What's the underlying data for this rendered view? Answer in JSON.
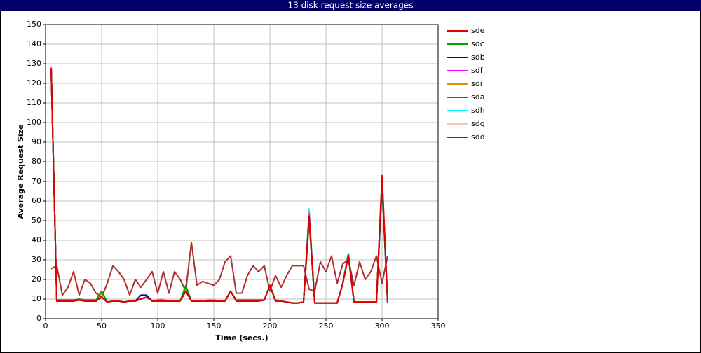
{
  "chart_data": {
    "type": "line",
    "title": "13 disk request size averages",
    "x_label": "Time (secs.)",
    "y_label": "Average Request Size",
    "xlim": [
      0,
      350
    ],
    "xticks": [
      0,
      50,
      100,
      150,
      200,
      250,
      300,
      350
    ],
    "ylim": [
      0,
      150
    ],
    "yticks": [
      0,
      10,
      20,
      30,
      40,
      50,
      60,
      70,
      80,
      90,
      100,
      110,
      120,
      130,
      140,
      150
    ],
    "grid": true,
    "legend": "right",
    "x": [
      5,
      10,
      15,
      20,
      25,
      30,
      35,
      40,
      45,
      50,
      55,
      60,
      65,
      70,
      75,
      80,
      85,
      90,
      95,
      100,
      105,
      110,
      115,
      120,
      125,
      130,
      135,
      140,
      145,
      150,
      155,
      160,
      165,
      170,
      175,
      180,
      185,
      190,
      195,
      200,
      205,
      210,
      215,
      220,
      225,
      230,
      235,
      240,
      245,
      250,
      255,
      260,
      265,
      270,
      275,
      280,
      285,
      290,
      295,
      300,
      305
    ],
    "series": [
      {
        "name": "sde",
        "color": "#e00000",
        "values": [
          128,
          9,
          9,
          9,
          9,
          9.5,
          9,
          9,
          9,
          11,
          8.5,
          9,
          9,
          8.5,
          9,
          9,
          10,
          11,
          9,
          9,
          9,
          9,
          9,
          9,
          14,
          9,
          9,
          9,
          9,
          9,
          9,
          9,
          14,
          9,
          9,
          9,
          9,
          9,
          9.5,
          17,
          9,
          9,
          8.5,
          8,
          8,
          8.5,
          52,
          8,
          8,
          8,
          8,
          8,
          18,
          32,
          8.5,
          8.5,
          8.5,
          8.5,
          8.5,
          73,
          8
        ]
      },
      {
        "name": "sdc",
        "color": "#00a000",
        "values": [
          128,
          9.5,
          9.5,
          9.5,
          9.5,
          10,
          9.5,
          9.5,
          9.5,
          14,
          8.5,
          9,
          9,
          8.5,
          9,
          9,
          10,
          11,
          9,
          9.5,
          9.5,
          9,
          9,
          9,
          17,
          9,
          9,
          9,
          9,
          9,
          9,
          9,
          14,
          9.5,
          9.5,
          9.5,
          9.5,
          9.5,
          9.5,
          17,
          9.5,
          9,
          8.5,
          8,
          8,
          8.5,
          50,
          8,
          8,
          8,
          8,
          8,
          18,
          33,
          8.5,
          8.5,
          8.5,
          8.5,
          8.5,
          70,
          8
        ]
      },
      {
        "name": "sdb",
        "color": "#0000c0",
        "values": [
          128,
          9,
          9,
          9,
          9,
          9.5,
          9,
          9,
          9,
          11,
          8.5,
          9,
          9,
          8.5,
          9,
          9,
          12,
          12,
          9,
          9,
          9,
          9,
          9,
          9,
          14,
          9,
          9,
          9,
          9,
          9,
          9,
          9,
          14,
          9,
          9,
          9,
          9,
          9,
          9.5,
          17,
          9,
          9,
          8.5,
          8,
          8,
          8.5,
          52,
          8,
          8,
          8,
          8,
          8,
          18,
          33,
          8.5,
          8.5,
          8.5,
          8.5,
          8.5,
          68,
          8
        ]
      },
      {
        "name": "sdf",
        "color": "#ff00ff",
        "values": [
          128,
          9,
          9,
          9,
          9,
          9.5,
          9,
          9,
          9,
          11,
          8.5,
          9,
          9,
          8.5,
          9,
          9,
          10,
          11,
          9,
          9,
          9,
          9,
          9,
          9,
          14,
          9,
          9,
          9,
          9,
          9,
          9,
          9,
          14,
          9,
          9,
          9,
          9,
          9,
          9.5,
          17,
          9,
          9,
          8.5,
          8,
          8,
          8.5,
          53,
          8,
          8,
          8,
          8,
          8,
          18,
          32,
          8.5,
          8.5,
          8.5,
          8.5,
          8.5,
          72,
          8
        ]
      },
      {
        "name": "sdi",
        "color": "#e89000",
        "values": [
          128,
          9,
          9,
          9,
          9,
          9.5,
          9,
          9,
          9,
          13,
          8.5,
          9,
          9,
          8.5,
          9,
          9,
          10,
          11,
          9,
          9,
          9,
          9,
          9,
          9,
          15,
          9,
          9,
          9,
          9.5,
          9.5,
          9,
          9,
          14,
          9,
          9,
          9,
          9,
          9,
          9.5,
          17,
          9,
          9,
          8.5,
          8,
          8,
          8.5,
          54,
          8,
          8,
          8,
          8,
          8,
          18,
          32,
          8.5,
          8.5,
          8.5,
          8.5,
          8.5,
          72,
          8
        ]
      },
      {
        "name": "sda",
        "color": "#b03030",
        "values": [
          25.5,
          27,
          12,
          16,
          24,
          12,
          20,
          18,
          13,
          11,
          18,
          27,
          24,
          20,
          12,
          20,
          16,
          20,
          24,
          13,
          24,
          13,
          24,
          20,
          14,
          39,
          17,
          19,
          18,
          17,
          20,
          29,
          32,
          13,
          13,
          22,
          27,
          24,
          27,
          14,
          22,
          16,
          22,
          27,
          27,
          27,
          15,
          14,
          29,
          24,
          32,
          18,
          28,
          30,
          17,
          29,
          20,
          24,
          32,
          18,
          32
        ]
      },
      {
        "name": "sdh",
        "color": "#00ffff",
        "values": [
          128,
          9,
          9,
          9,
          9,
          9.5,
          9,
          9,
          9,
          11,
          8.5,
          9,
          9,
          8.5,
          9,
          9,
          10,
          11,
          9,
          9,
          9,
          9,
          9,
          9,
          14,
          9,
          9,
          9,
          9,
          9,
          9,
          9,
          14,
          9,
          9,
          9,
          9,
          9,
          9.5,
          17,
          9,
          9,
          8.5,
          8,
          8,
          8.5,
          56,
          8,
          8,
          8,
          8,
          8,
          18,
          33,
          8.5,
          8.5,
          8.5,
          8.5,
          8.5,
          72,
          8
        ]
      },
      {
        "name": "sdg",
        "color": "#ffc0c0",
        "values": [
          128,
          9,
          9,
          9,
          9,
          9.5,
          9,
          9,
          9,
          11,
          8.5,
          9,
          9,
          8.5,
          9,
          9,
          10,
          11,
          9,
          10,
          10,
          9,
          9,
          9,
          14,
          9,
          9,
          9,
          9,
          9,
          9,
          9,
          14,
          9,
          9,
          9,
          9,
          9,
          9.5,
          17,
          9,
          9,
          8.5,
          8,
          8,
          8.5,
          52,
          8,
          8,
          8,
          8,
          8,
          18,
          32,
          8.5,
          8.5,
          8.5,
          8.5,
          8.5,
          72,
          8
        ]
      },
      {
        "name": "sdd",
        "color": "#007000",
        "values": [
          128,
          9,
          9,
          9,
          9,
          9.5,
          9,
          9,
          9,
          14,
          8.5,
          9,
          9,
          8.5,
          9,
          9,
          10,
          11,
          9,
          9,
          9,
          9,
          9,
          9,
          16,
          9,
          9,
          9,
          9,
          9,
          9,
          9,
          14,
          9,
          9,
          9,
          9,
          9,
          9.5,
          17,
          9,
          9,
          8.5,
          8,
          8,
          8.5,
          51,
          8,
          8,
          8,
          8,
          8,
          18,
          32,
          8.5,
          8.5,
          8.5,
          8.5,
          8.5,
          71,
          8
        ]
      }
    ]
  }
}
